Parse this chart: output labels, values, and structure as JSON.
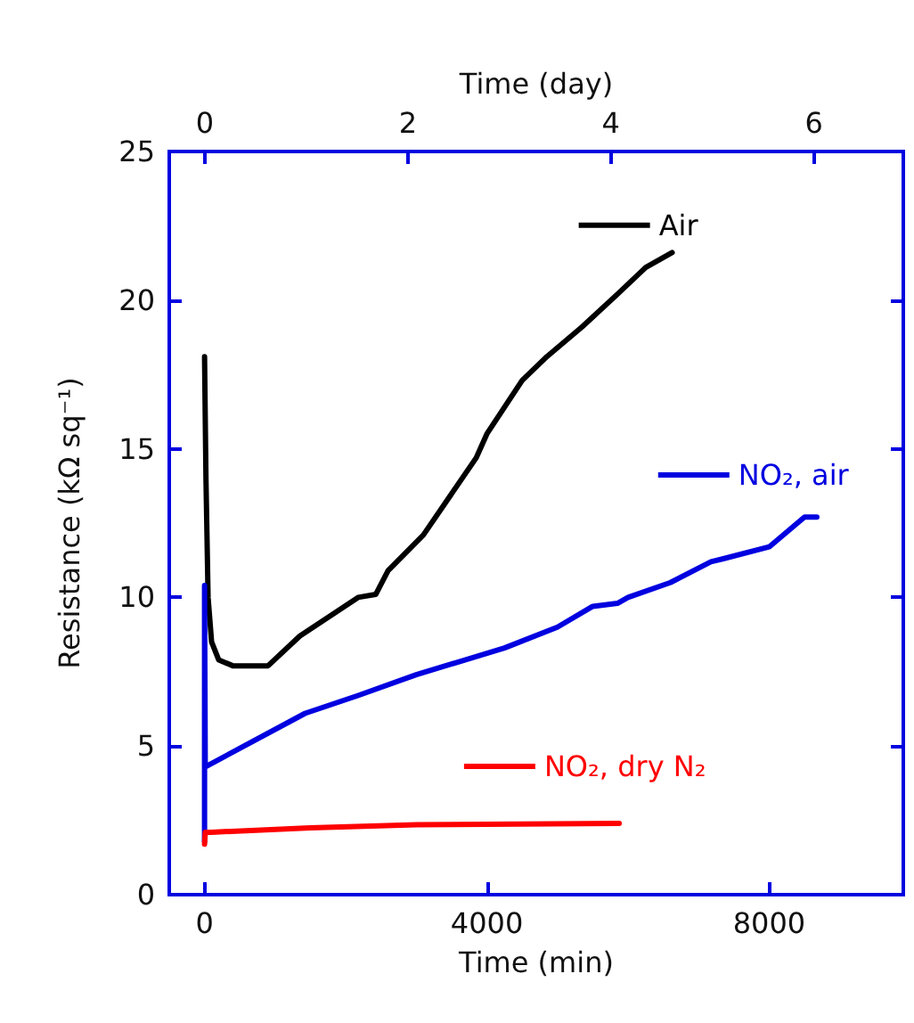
{
  "chart_data": {
    "type": "line",
    "xlabel": "Time (min)",
    "ylabel": "Resistance (kΩ sq⁻¹)",
    "x2label": "Time (day)",
    "xlim": [
      -500,
      9900
    ],
    "xticks": [
      0,
      4000,
      8000
    ],
    "x2lim": [
      -0.35,
      6.88
    ],
    "x2ticks": [
      0,
      2,
      4,
      6
    ],
    "ylim": [
      0,
      25
    ],
    "yticks": [
      0,
      5,
      10,
      15,
      20,
      25
    ],
    "grid": false,
    "legend": "right",
    "marker": "none",
    "line_style": "solid",
    "series": [
      {
        "name": "Air",
        "color": "#000000",
        "x": [
          0,
          20,
          50,
          100,
          200,
          400,
          900,
          1350,
          2175,
          2425,
          2600,
          3100,
          3850,
          4000,
          4500,
          4850,
          5350,
          5850,
          6250,
          6625
        ],
        "values": [
          18.1,
          14,
          10,
          8.5,
          7.9,
          7.7,
          7.7,
          8.7,
          10.0,
          10.1,
          10.9,
          12.1,
          14.7,
          15.5,
          17.3,
          18.1,
          19.1,
          20.2,
          21.1,
          21.6
        ]
      },
      {
        "name": "NO₂, air",
        "color": "#0000e0",
        "x": [
          0,
          0,
          10,
          1425,
          2175,
          3000,
          4250,
          5000,
          5500,
          5850,
          6000,
          6600,
          7175,
          7350,
          8000,
          8500,
          8675
        ],
        "values": [
          1.8,
          10.4,
          4.3,
          6.1,
          6.7,
          7.4,
          8.3,
          9.0,
          9.7,
          9.8,
          10.0,
          10.5,
          11.2,
          11.3,
          11.7,
          12.7,
          12.7
        ]
      },
      {
        "name": "NO₂, dry N₂",
        "color": "#ff0000",
        "x": [
          0,
          10,
          100,
          1500,
          3000,
          5875
        ],
        "values": [
          1.7,
          2.1,
          2.1,
          2.25,
          2.35,
          2.4
        ]
      }
    ]
  }
}
